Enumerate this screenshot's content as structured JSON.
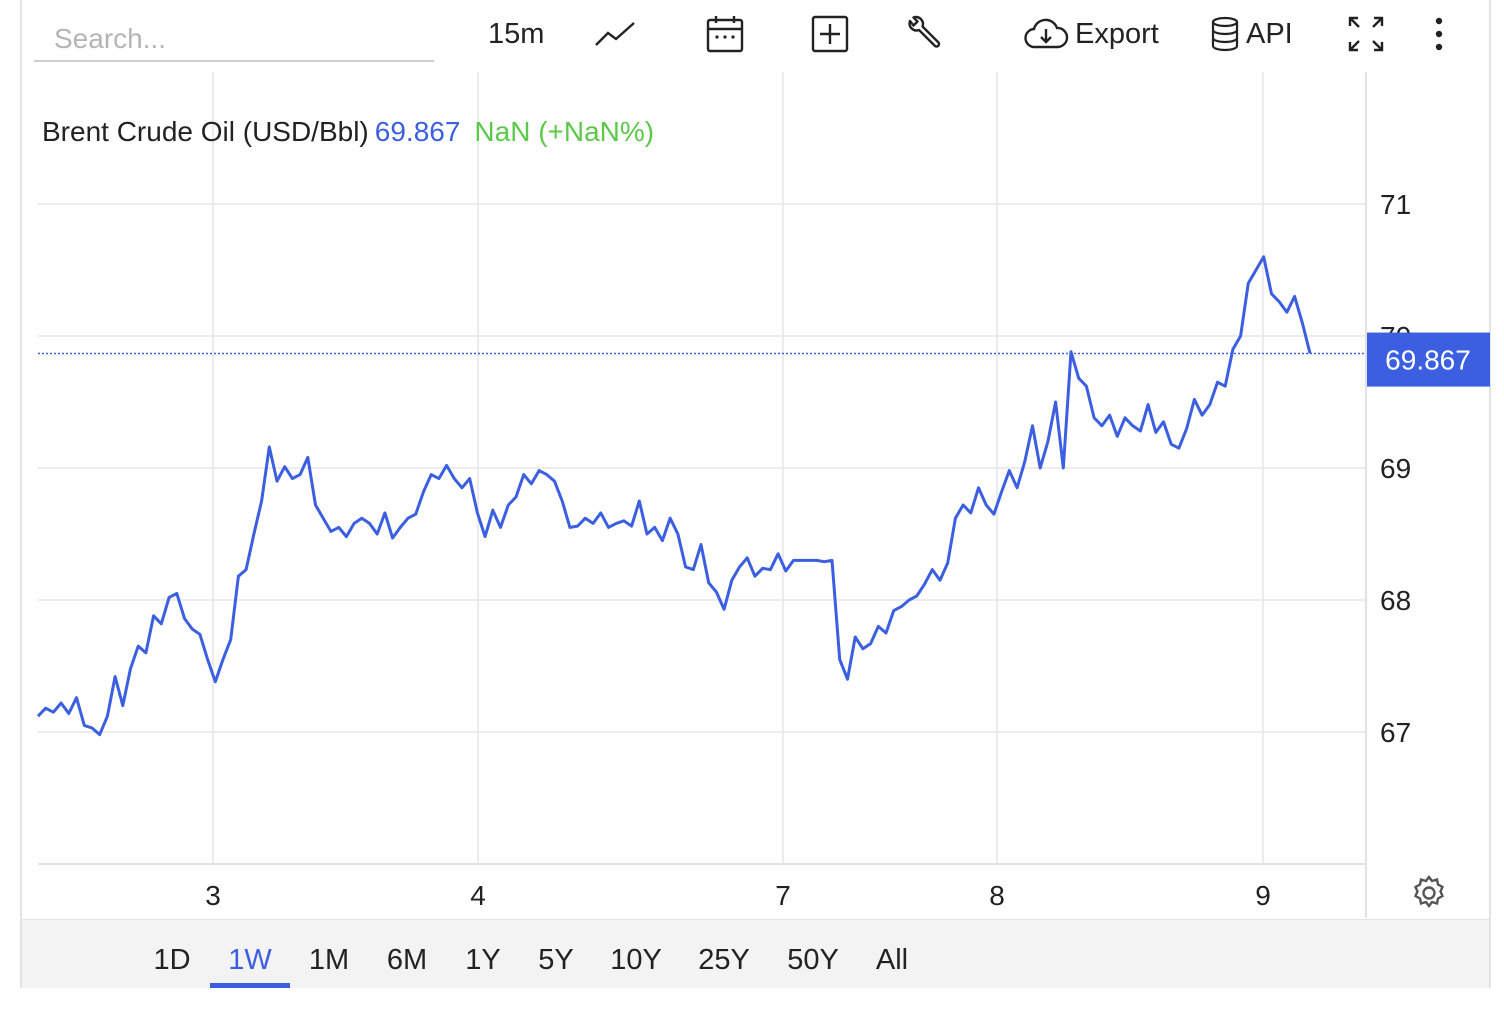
{
  "search": {
    "placeholder": "Search..."
  },
  "toolbar": {
    "interval_label": "15m",
    "export_label": "Export",
    "api_label": "API",
    "icons": [
      "line-chart-icon",
      "calendar-icon",
      "add-box-icon",
      "wrench-icon",
      "cloud-download-icon",
      "database-icon",
      "fullscreen-icon",
      "more-vertical-icon"
    ]
  },
  "legend": {
    "name": "Brent Crude Oil (USD/Bbl)",
    "value": "69.867",
    "change": "NaN (+NaN%)"
  },
  "colors": {
    "line": "#3b5fe0",
    "change": "#5cc94a",
    "grid": "#e6e6e6",
    "active": "#3b5fe0"
  },
  "ranges": [
    "1D",
    "1W",
    "1M",
    "6M",
    "1Y",
    "5Y",
    "10Y",
    "25Y",
    "50Y",
    "All"
  ],
  "active_range": "1W",
  "chart_data": {
    "type": "line",
    "title": "Brent Crude Oil (USD/Bbl)",
    "xlabel": "",
    "ylabel": "",
    "x_ticks": [
      "3",
      "4",
      "7",
      "8",
      "9"
    ],
    "y_ticks": [
      "67",
      "68",
      "69",
      "70",
      "71"
    ],
    "ylim": [
      66,
      71.5
    ],
    "grid": true,
    "last_value": 69.867,
    "last_value_label": "69.867",
    "series": [
      {
        "values": [
          67.12,
          67.18,
          67.15,
          67.22,
          67.14,
          67.26,
          67.05,
          67.03,
          66.98,
          67.12,
          67.42,
          67.2,
          67.48,
          67.65,
          67.6,
          67.88,
          67.82,
          68.02,
          68.05,
          67.86,
          67.78,
          67.74,
          67.55,
          67.38,
          67.55,
          67.7,
          68.18,
          68.23,
          68.5,
          68.75,
          69.16,
          68.9,
          69.01,
          68.92,
          68.95,
          69.08,
          68.72,
          68.62,
          68.52,
          68.55,
          68.48,
          68.58,
          68.62,
          68.58,
          68.5,
          68.66,
          68.47,
          68.55,
          68.62,
          68.65,
          68.82,
          68.95,
          68.92,
          69.02,
          68.92,
          68.85,
          68.92,
          68.66,
          68.48,
          68.68,
          68.55,
          68.72,
          68.78,
          68.95,
          68.88,
          68.98,
          68.95,
          68.9,
          68.75,
          68.55,
          68.56,
          68.62,
          68.58,
          68.66,
          68.55,
          68.58,
          68.6,
          68.56,
          68.75,
          68.5,
          68.55,
          68.45,
          68.62,
          68.5,
          68.25,
          68.23,
          68.42,
          68.13,
          68.06,
          67.93,
          68.15,
          68.25,
          68.32,
          68.18,
          68.24,
          68.23,
          68.35,
          68.22,
          68.3,
          68.3,
          68.3,
          68.3,
          68.29,
          68.3,
          67.55,
          67.4,
          67.72,
          67.63,
          67.67,
          67.8,
          67.75,
          67.92,
          67.95,
          68.0,
          68.03,
          68.12,
          68.23,
          68.15,
          68.28,
          68.62,
          68.72,
          68.66,
          68.85,
          68.72,
          68.65,
          68.82,
          68.98,
          68.85,
          69.05,
          69.32,
          69.0,
          69.2,
          69.5,
          69.0,
          69.88,
          69.68,
          69.62,
          69.38,
          69.32,
          69.4,
          69.24,
          69.38,
          69.32,
          69.28,
          69.48,
          69.27,
          69.35,
          69.18,
          69.15,
          69.3,
          69.52,
          69.4,
          69.48,
          69.65,
          69.62,
          69.9,
          70.0,
          70.4,
          70.5,
          70.6,
          70.32,
          70.26,
          70.18,
          70.3,
          70.1,
          69.87
        ]
      }
    ]
  }
}
